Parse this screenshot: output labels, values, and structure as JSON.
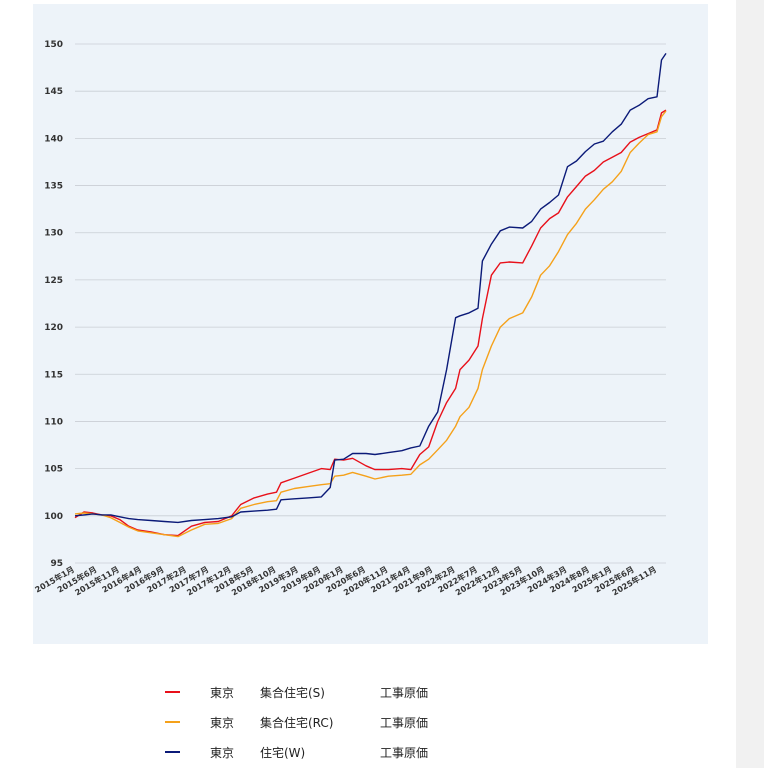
{
  "chart_data": {
    "type": "line",
    "title": "",
    "xlabel": "",
    "ylabel": "",
    "ylim": [
      95,
      150
    ],
    "yticks": [
      95,
      100,
      105,
      110,
      115,
      120,
      125,
      130,
      135,
      140,
      145,
      150
    ],
    "grid": true,
    "x_start": "2015-01",
    "x_end": "2026-01",
    "xticks": [
      "2015年1月",
      "2015年6月",
      "2015年11月",
      "2016年4月",
      "2016年9月",
      "2017年2月",
      "2017年7月",
      "2017年12月",
      "2018年5月",
      "2018年10月",
      "2019年3月",
      "2019年8月",
      "2020年1月",
      "2020年6月",
      "2020年11月",
      "2021年4月",
      "2021年9月",
      "2022年2月",
      "2022年7月",
      "2022年12月",
      "2023年5月",
      "2023年10月",
      "2024年3月",
      "2024年8月",
      "2025年1月",
      "2025年6月",
      "2025年11月"
    ],
    "legend_position": "bottom",
    "series": [
      {
        "color": "#e8101a",
        "legend": {
          "region": "東京",
          "type": "集合住宅(S)",
          "index": "工事原価"
        },
        "points": [
          [
            "2015-01",
            99.8
          ],
          [
            "2015-03",
            100.4
          ],
          [
            "2015-05",
            100.3
          ],
          [
            "2015-07",
            100.1
          ],
          [
            "2015-09",
            100.0
          ],
          [
            "2015-11",
            99.6
          ],
          [
            "2016-01",
            98.9
          ],
          [
            "2016-03",
            98.5
          ],
          [
            "2016-06",
            98.3
          ],
          [
            "2016-09",
            98.0
          ],
          [
            "2016-12",
            97.9
          ],
          [
            "2017-03",
            98.9
          ],
          [
            "2017-06",
            99.3
          ],
          [
            "2017-09",
            99.4
          ],
          [
            "2017-12",
            100.0
          ],
          [
            "2018-02",
            101.2
          ],
          [
            "2018-05",
            101.9
          ],
          [
            "2018-08",
            102.3
          ],
          [
            "2018-10",
            102.5
          ],
          [
            "2018-11",
            103.5
          ],
          [
            "2019-02",
            104.0
          ],
          [
            "2019-05",
            104.5
          ],
          [
            "2019-08",
            105.0
          ],
          [
            "2019-10",
            104.9
          ],
          [
            "2019-11",
            106.0
          ],
          [
            "2020-01",
            105.9
          ],
          [
            "2020-03",
            106.1
          ],
          [
            "2020-06",
            105.3
          ],
          [
            "2020-08",
            104.9
          ],
          [
            "2020-11",
            104.9
          ],
          [
            "2021-02",
            105.0
          ],
          [
            "2021-04",
            104.9
          ],
          [
            "2021-06",
            106.5
          ],
          [
            "2021-08",
            107.3
          ],
          [
            "2021-10",
            110.0
          ],
          [
            "2021-12",
            112.0
          ],
          [
            "2022-02",
            113.5
          ],
          [
            "2022-03",
            115.5
          ],
          [
            "2022-05",
            116.5
          ],
          [
            "2022-07",
            118.0
          ],
          [
            "2022-08",
            120.9
          ],
          [
            "2022-10",
            125.5
          ],
          [
            "2022-12",
            126.8
          ],
          [
            "2023-02",
            126.9
          ],
          [
            "2023-05",
            126.8
          ],
          [
            "2023-07",
            128.6
          ],
          [
            "2023-09",
            130.5
          ],
          [
            "2023-11",
            131.5
          ],
          [
            "2024-01",
            132.1
          ],
          [
            "2024-03",
            133.8
          ],
          [
            "2024-05",
            134.9
          ],
          [
            "2024-07",
            136.0
          ],
          [
            "2024-09",
            136.6
          ],
          [
            "2024-11",
            137.5
          ],
          [
            "2025-01",
            138.0
          ],
          [
            "2025-03",
            138.5
          ],
          [
            "2025-05",
            139.6
          ],
          [
            "2025-07",
            140.1
          ],
          [
            "2025-09",
            140.5
          ],
          [
            "2025-11",
            140.9
          ],
          [
            "2025-12",
            142.7
          ],
          [
            "2026-01",
            143.0
          ]
        ]
      },
      {
        "color": "#f5a11a",
        "legend": {
          "region": "東京",
          "type": "集合住宅(RC)",
          "index": "工事原価"
        },
        "points": [
          [
            "2015-01",
            100.2
          ],
          [
            "2015-03",
            100.3
          ],
          [
            "2015-05",
            100.2
          ],
          [
            "2015-07",
            100.1
          ],
          [
            "2015-09",
            99.8
          ],
          [
            "2015-11",
            99.3
          ],
          [
            "2016-01",
            98.8
          ],
          [
            "2016-03",
            98.4
          ],
          [
            "2016-06",
            98.2
          ],
          [
            "2016-09",
            98.0
          ],
          [
            "2016-12",
            97.8
          ],
          [
            "2017-03",
            98.5
          ],
          [
            "2017-06",
            99.1
          ],
          [
            "2017-09",
            99.2
          ],
          [
            "2017-12",
            99.7
          ],
          [
            "2018-02",
            100.8
          ],
          [
            "2018-05",
            101.2
          ],
          [
            "2018-08",
            101.5
          ],
          [
            "2018-10",
            101.6
          ],
          [
            "2018-11",
            102.5
          ],
          [
            "2019-02",
            102.9
          ],
          [
            "2019-05",
            103.1
          ],
          [
            "2019-08",
            103.3
          ],
          [
            "2019-10",
            103.4
          ],
          [
            "2019-11",
            104.2
          ],
          [
            "2020-01",
            104.3
          ],
          [
            "2020-03",
            104.6
          ],
          [
            "2020-06",
            104.2
          ],
          [
            "2020-08",
            103.9
          ],
          [
            "2020-11",
            104.2
          ],
          [
            "2021-02",
            104.3
          ],
          [
            "2021-04",
            104.4
          ],
          [
            "2021-06",
            105.4
          ],
          [
            "2021-08",
            106.0
          ],
          [
            "2021-10",
            107.0
          ],
          [
            "2021-12",
            108.0
          ],
          [
            "2022-02",
            109.5
          ],
          [
            "2022-03",
            110.5
          ],
          [
            "2022-05",
            111.5
          ],
          [
            "2022-07",
            113.5
          ],
          [
            "2022-08",
            115.5
          ],
          [
            "2022-10",
            118.0
          ],
          [
            "2022-12",
            120.0
          ],
          [
            "2023-02",
            120.9
          ],
          [
            "2023-05",
            121.5
          ],
          [
            "2023-07",
            123.2
          ],
          [
            "2023-09",
            125.5
          ],
          [
            "2023-11",
            126.5
          ],
          [
            "2024-01",
            128.0
          ],
          [
            "2024-03",
            129.8
          ],
          [
            "2024-05",
            131.0
          ],
          [
            "2024-07",
            132.5
          ],
          [
            "2024-09",
            133.5
          ],
          [
            "2024-11",
            134.6
          ],
          [
            "2025-01",
            135.4
          ],
          [
            "2025-03",
            136.5
          ],
          [
            "2025-05",
            138.5
          ],
          [
            "2025-07",
            139.5
          ],
          [
            "2025-09",
            140.4
          ],
          [
            "2025-11",
            140.7
          ],
          [
            "2025-12",
            142.3
          ],
          [
            "2026-01",
            142.9
          ]
        ]
      },
      {
        "color": "#0b1a78",
        "legend": {
          "region": "東京",
          "type": "住宅(W)",
          "index": "工事原価"
        },
        "points": [
          [
            "2015-01",
            100.0
          ],
          [
            "2015-03",
            100.1
          ],
          [
            "2015-05",
            100.2
          ],
          [
            "2015-07",
            100.1
          ],
          [
            "2015-09",
            100.1
          ],
          [
            "2015-11",
            99.9
          ],
          [
            "2016-01",
            99.7
          ],
          [
            "2016-03",
            99.6
          ],
          [
            "2016-06",
            99.5
          ],
          [
            "2016-09",
            99.4
          ],
          [
            "2016-12",
            99.3
          ],
          [
            "2017-03",
            99.5
          ],
          [
            "2017-06",
            99.6
          ],
          [
            "2017-09",
            99.7
          ],
          [
            "2017-12",
            99.9
          ],
          [
            "2018-02",
            100.4
          ],
          [
            "2018-05",
            100.5
          ],
          [
            "2018-08",
            100.6
          ],
          [
            "2018-10",
            100.7
          ],
          [
            "2018-11",
            101.7
          ],
          [
            "2019-02",
            101.8
          ],
          [
            "2019-05",
            101.9
          ],
          [
            "2019-08",
            102.0
          ],
          [
            "2019-10",
            103.0
          ],
          [
            "2019-11",
            105.9
          ],
          [
            "2020-01",
            106.0
          ],
          [
            "2020-03",
            106.6
          ],
          [
            "2020-06",
            106.6
          ],
          [
            "2020-08",
            106.5
          ],
          [
            "2020-11",
            106.7
          ],
          [
            "2021-02",
            106.9
          ],
          [
            "2021-04",
            107.2
          ],
          [
            "2021-06",
            107.4
          ],
          [
            "2021-08",
            109.5
          ],
          [
            "2021-10",
            111.0
          ],
          [
            "2021-12",
            115.5
          ],
          [
            "2022-02",
            121.0
          ],
          [
            "2022-03",
            121.2
          ],
          [
            "2022-05",
            121.5
          ],
          [
            "2022-07",
            122.0
          ],
          [
            "2022-08",
            127.0
          ],
          [
            "2022-10",
            128.8
          ],
          [
            "2022-12",
            130.2
          ],
          [
            "2023-02",
            130.6
          ],
          [
            "2023-05",
            130.5
          ],
          [
            "2023-07",
            131.2
          ],
          [
            "2023-09",
            132.5
          ],
          [
            "2023-11",
            133.2
          ],
          [
            "2024-01",
            134.0
          ],
          [
            "2024-03",
            137.0
          ],
          [
            "2024-05",
            137.6
          ],
          [
            "2024-07",
            138.6
          ],
          [
            "2024-09",
            139.4
          ],
          [
            "2024-11",
            139.7
          ],
          [
            "2025-01",
            140.7
          ],
          [
            "2025-03",
            141.5
          ],
          [
            "2025-05",
            143.0
          ],
          [
            "2025-07",
            143.5
          ],
          [
            "2025-09",
            144.2
          ],
          [
            "2025-11",
            144.4
          ],
          [
            "2025-12",
            148.3
          ],
          [
            "2026-01",
            149.0
          ]
        ]
      }
    ]
  }
}
